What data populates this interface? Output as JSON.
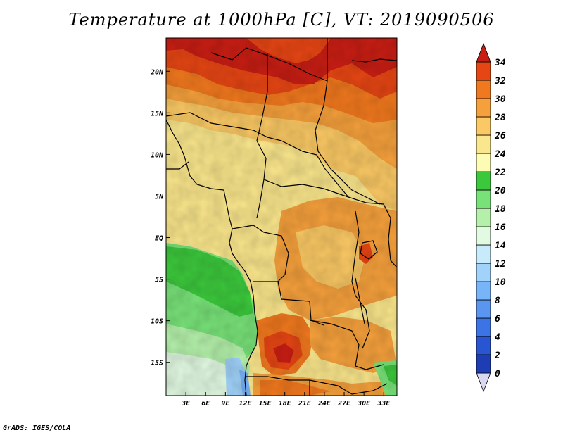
{
  "title": "Temperature at 1000hPa [C], VT: 2019090506",
  "credit": "GrADS: IGES/COLA",
  "map": {
    "lon_range": [
      0,
      35
    ],
    "lat_range": [
      -19,
      24
    ],
    "x_ticks": [
      "3E",
      "6E",
      "9E",
      "12E",
      "15E",
      "18E",
      "21E",
      "24E",
      "27E",
      "30E",
      "33E"
    ],
    "x_tick_values": [
      3,
      6,
      9,
      12,
      15,
      18,
      21,
      24,
      27,
      30,
      33
    ],
    "y_ticks": [
      "20N",
      "15N",
      "10N",
      "5N",
      "EQ",
      "5S",
      "10S",
      "15S"
    ],
    "y_tick_values": [
      20,
      15,
      10,
      5,
      0,
      -5,
      -10,
      -15
    ]
  },
  "colorbar": {
    "levels": [
      "0",
      "2",
      "4",
      "6",
      "8",
      "10",
      "12",
      "14",
      "16",
      "18",
      "20",
      "22",
      "24",
      "26",
      "28",
      "30",
      "32",
      "34"
    ],
    "colors": [
      "#1a1a80",
      "#1e3cb4",
      "#2856d2",
      "#3c74e6",
      "#5a96f0",
      "#78b4f8",
      "#a0d2fa",
      "#c8ebfc",
      "#e2fae2",
      "#b4f0aa",
      "#78e278",
      "#3cc83c",
      "#fcfcb4",
      "#fae68c",
      "#fac864",
      "#f5a03c",
      "#f0781e",
      "#e64614",
      "#c81e14"
    ]
  },
  "regions": [
    {
      "name": "sahara-hot-core",
      "color": "#c81e14"
    },
    {
      "name": "sahel-orange",
      "color": "#f5a03c"
    },
    {
      "name": "central-yellow",
      "color": "#fae68c"
    },
    {
      "name": "atlantic-green",
      "color": "#78e278"
    },
    {
      "name": "southern-orange",
      "color": "#f0781e"
    }
  ]
}
